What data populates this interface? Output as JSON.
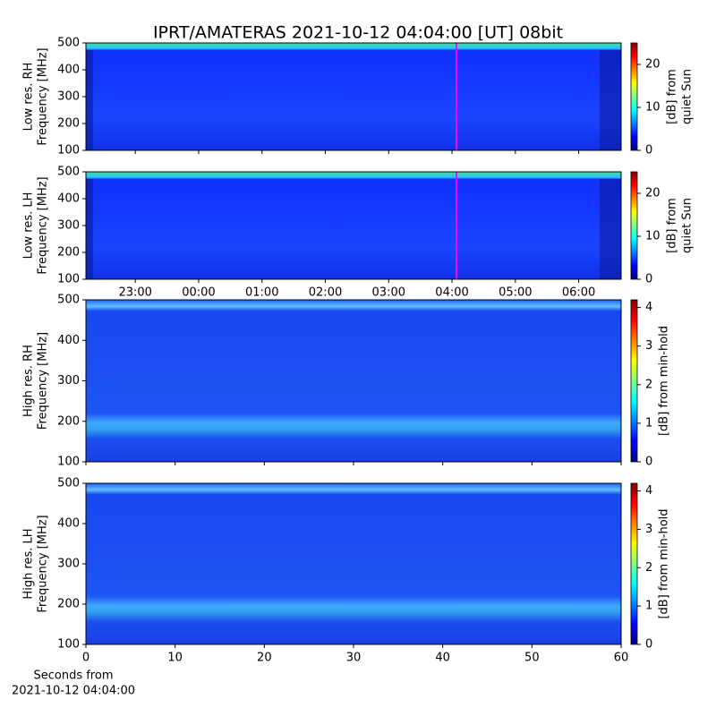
{
  "chart_data": [
    {
      "type": "heatmap",
      "title": "IPRT/AMATERAS 2021-10-12 04:04:00 [UT]   08bit",
      "y_label": [
        "Low res. RH",
        "Frequency [MHz]"
      ],
      "ylim": [
        100,
        500
      ],
      "yticks": [
        100,
        200,
        300,
        400,
        500
      ],
      "cursor": 28.07,
      "cursor_color": "#ff00ff",
      "colorbar": {
        "label": [
          "[dB] from",
          "quiet Sun"
        ],
        "lim": [
          0,
          25
        ],
        "ticks": [
          0,
          10,
          20
        ]
      }
    },
    {
      "type": "heatmap",
      "y_label": [
        "Low res. LH",
        "Frequency [MHz]"
      ],
      "ylim": [
        100,
        500
      ],
      "yticks": [
        100,
        200,
        300,
        400,
        500
      ],
      "xlim": [
        22.22,
        30.67
      ],
      "xticks": [
        {
          "value": 23,
          "label": "23:00"
        },
        {
          "value": 24,
          "label": "00:00"
        },
        {
          "value": 25,
          "label": "01:00"
        },
        {
          "value": 26,
          "label": "02:00"
        },
        {
          "value": 27,
          "label": "03:00"
        },
        {
          "value": 28,
          "label": "04:00"
        },
        {
          "value": 29,
          "label": "05:00"
        },
        {
          "value": 30,
          "label": "06:00"
        }
      ],
      "cursor": 28.07,
      "cursor_color": "#ff00ff",
      "colorbar": {
        "label": [
          "[dB] from",
          "quiet Sun"
        ],
        "lim": [
          0,
          25
        ],
        "ticks": [
          0,
          10,
          20
        ]
      }
    },
    {
      "type": "heatmap",
      "y_label": [
        "High res. RH",
        "Frequency [MHz]"
      ],
      "ylim": [
        100,
        500
      ],
      "yticks": [
        100,
        200,
        300,
        400,
        500
      ],
      "colorbar": {
        "label": [
          "[dB] from min-hold"
        ],
        "lim": [
          0,
          4.2
        ],
        "ticks": [
          0,
          1,
          2,
          3,
          4
        ]
      }
    },
    {
      "type": "heatmap",
      "y_label": [
        "High res. LH",
        "Frequency [MHz]"
      ],
      "ylim": [
        100,
        500
      ],
      "yticks": [
        100,
        200,
        300,
        400,
        500
      ],
      "xlim": [
        0,
        60
      ],
      "xticks": [
        0,
        10,
        20,
        30,
        40,
        50,
        60
      ],
      "x_label": [
        "Seconds from",
        "2021-10-12 04:04:00"
      ],
      "colorbar": {
        "label": [
          "[dB] from min-hold"
        ],
        "lim": [
          0,
          4.2
        ],
        "ticks": [
          0,
          1,
          2,
          3,
          4
        ]
      }
    }
  ]
}
